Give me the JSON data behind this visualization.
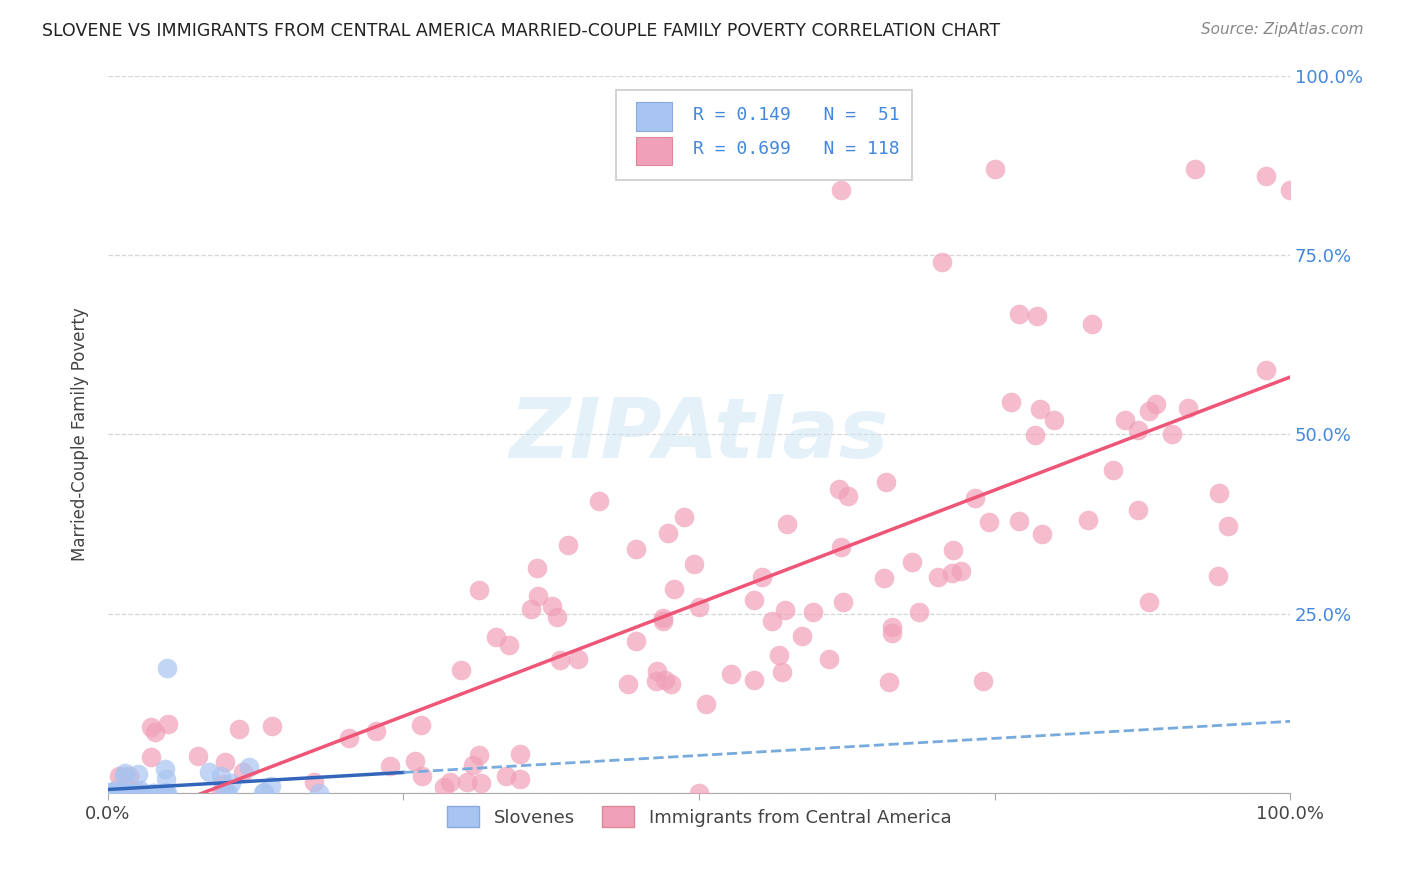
{
  "title": "SLOVENE VS IMMIGRANTS FROM CENTRAL AMERICA MARRIED-COUPLE FAMILY POVERTY CORRELATION CHART",
  "source": "Source: ZipAtlas.com",
  "ylabel": "Married-Couple Family Poverty",
  "R1": 0.149,
  "N1": 51,
  "R2": 0.699,
  "N2": 118,
  "color_slovene_fill": "#a8c4f0",
  "color_slovene_edge": "#88aadd",
  "color_immigrant_fill": "#f0a0b8",
  "color_immigrant_edge": "#dd8899",
  "color_line_slovene_solid": "#3366bb",
  "color_line_slovene_dash": "#77aadd",
  "color_line_immigrant": "#ee5577",
  "color_grid": "#cccccc",
  "color_right_axis": "#4488dd",
  "background_color": "#ffffff",
  "legend_label1": "Slovenes",
  "legend_label2": "Immigrants from Central America",
  "watermark_color": "#cce4f5",
  "watermark_alpha": 0.5
}
